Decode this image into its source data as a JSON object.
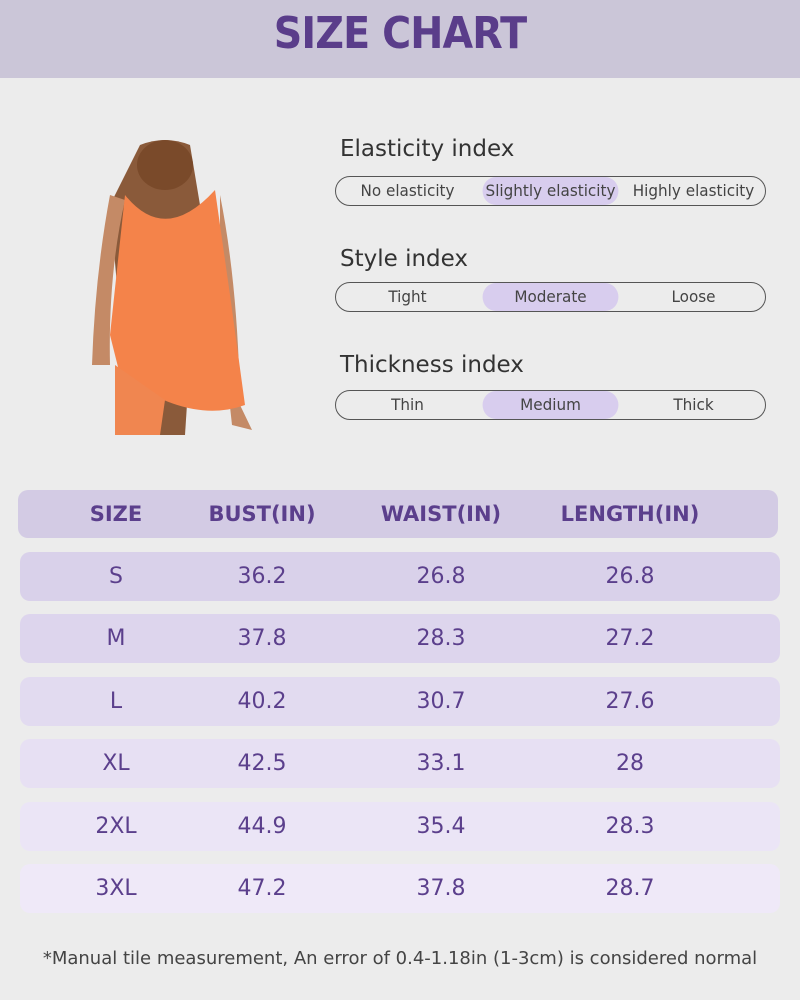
{
  "header": {
    "title": "SIZE CHART"
  },
  "indices": [
    {
      "label": "Elasticity index",
      "options": [
        "No elasticity",
        "Slightly elasticity",
        "Highly elasticity"
      ],
      "selected": 1
    },
    {
      "label": "Style index",
      "options": [
        "Tight",
        "Moderate",
        "Loose"
      ],
      "selected": 1
    },
    {
      "label": "Thickness index",
      "options": [
        "Thin",
        "Medium",
        "Thick"
      ],
      "selected": 1
    }
  ],
  "table": {
    "columns": [
      "SIZE",
      "BUST(IN)",
      "WAIST(IN)",
      "LENGTH(IN)"
    ],
    "rows": [
      [
        "S",
        36.2,
        26.8,
        26.8
      ],
      [
        "M",
        37.8,
        28.3,
        27.2
      ],
      [
        "L",
        40.2,
        30.7,
        27.6
      ],
      [
        "XL",
        42.5,
        33.1,
        28
      ],
      [
        "2XL",
        44.9,
        35.4,
        28.3
      ],
      [
        "3XL",
        47.2,
        37.8,
        28.7
      ]
    ]
  },
  "note": "*Manual tile measurement, An error of 0.4-1.18in (1-3cm) is considered normal"
}
